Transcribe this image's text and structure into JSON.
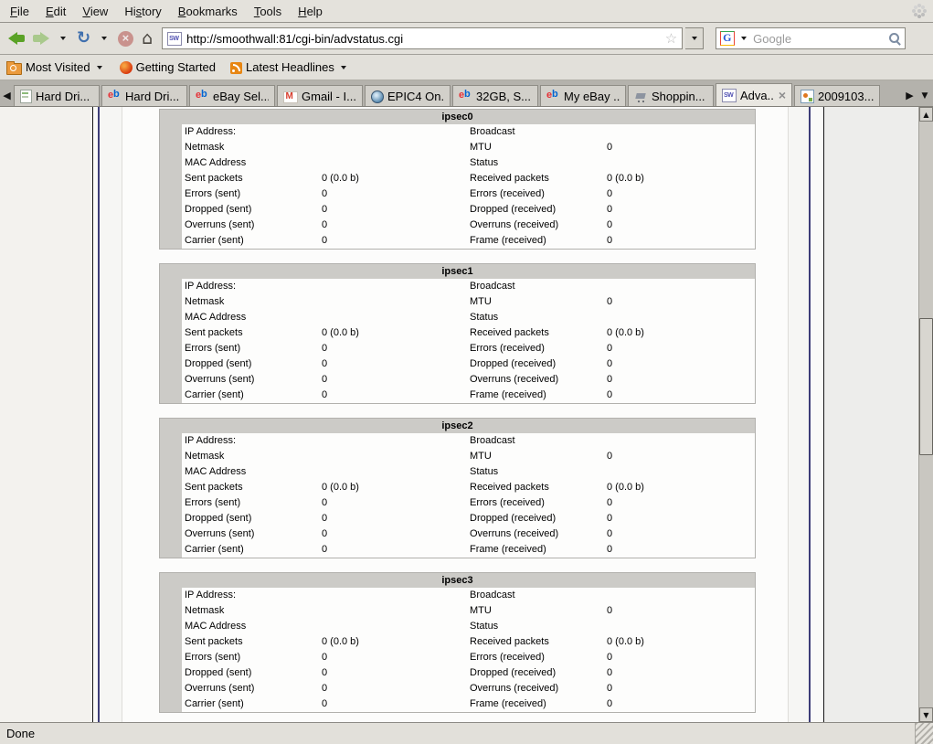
{
  "menubar": {
    "items": [
      {
        "label": "File",
        "accel_index": 0
      },
      {
        "label": "Edit",
        "accel_index": 0
      },
      {
        "label": "View",
        "accel_index": 0
      },
      {
        "label": "History",
        "accel_index": 2
      },
      {
        "label": "Bookmarks",
        "accel_index": 0
      },
      {
        "label": "Tools",
        "accel_index": 0
      },
      {
        "label": "Help",
        "accel_index": 0
      }
    ]
  },
  "navbar": {
    "url": "http://smoothwall:81/cgi-bin/advstatus.cgi",
    "search_placeholder": "Google",
    "icons": {
      "back": "green-left-arrow",
      "forward": "faded-right-arrow",
      "reload": "circular-arrows",
      "stop": "red-circle-x",
      "home": "house",
      "bookmark_star": "star-outline",
      "google_logo": "G",
      "search_magnifier": "magnifying-glass",
      "throbber": "dotted-spinner"
    }
  },
  "bookmarks_bar": {
    "items": [
      {
        "icon": "history-folder-icon",
        "label": "Most Visited",
        "dropdown": true
      },
      {
        "icon": "getting-started-icon",
        "label": "Getting Started",
        "dropdown": false
      },
      {
        "icon": "rss-icon",
        "label": "Latest Headlines",
        "dropdown": true
      }
    ]
  },
  "tabbar": {
    "tabs": [
      {
        "icon": "page-icon",
        "label": "Hard Dri...",
        "active": false,
        "close": false
      },
      {
        "icon": "ebay-icon",
        "label": "Hard Dri...",
        "active": false,
        "close": false
      },
      {
        "icon": "ebay-icon",
        "label": "eBay Sel...",
        "active": false,
        "close": false
      },
      {
        "icon": "gmail-icon",
        "label": "Gmail - I...",
        "active": false,
        "close": false
      },
      {
        "icon": "globe-icon",
        "label": "EPIC4 On...",
        "active": false,
        "close": false
      },
      {
        "icon": "ebay-icon",
        "label": "32GB, S...",
        "active": false,
        "close": false
      },
      {
        "icon": "ebay-icon",
        "label": "My eBay ...",
        "active": false,
        "close": false
      },
      {
        "icon": "cart-icon",
        "label": "Shoppin...",
        "active": false,
        "close": false
      },
      {
        "icon": "smoothwall-icon",
        "label": "Adva...",
        "active": true,
        "close": true
      },
      {
        "icon": "image-file-icon",
        "label": "2009103...",
        "active": false,
        "close": false
      }
    ]
  },
  "page": {
    "sections": [
      {
        "title": "ipsec0",
        "rows": [
          [
            "IP Address:",
            "",
            "Broadcast",
            ""
          ],
          [
            "Netmask",
            "",
            "MTU",
            "0"
          ],
          [
            "MAC Address",
            "",
            "Status",
            ""
          ],
          [
            "Sent packets",
            "0 (0.0 b)",
            "Received packets",
            "0 (0.0 b)"
          ],
          [
            "Errors (sent)",
            "0",
            "Errors (received)",
            "0"
          ],
          [
            "Dropped (sent)",
            "0",
            "Dropped (received)",
            "0"
          ],
          [
            "Overruns (sent)",
            "0",
            "Overruns (received)",
            "0"
          ],
          [
            "Carrier (sent)",
            "0",
            "Frame (received)",
            "0"
          ]
        ]
      },
      {
        "title": "ipsec1",
        "rows": [
          [
            "IP Address:",
            "",
            "Broadcast",
            ""
          ],
          [
            "Netmask",
            "",
            "MTU",
            "0"
          ],
          [
            "MAC Address",
            "",
            "Status",
            ""
          ],
          [
            "Sent packets",
            "0 (0.0 b)",
            "Received packets",
            "0 (0.0 b)"
          ],
          [
            "Errors (sent)",
            "0",
            "Errors (received)",
            "0"
          ],
          [
            "Dropped (sent)",
            "0",
            "Dropped (received)",
            "0"
          ],
          [
            "Overruns (sent)",
            "0",
            "Overruns (received)",
            "0"
          ],
          [
            "Carrier (sent)",
            "0",
            "Frame (received)",
            "0"
          ]
        ]
      },
      {
        "title": "ipsec2",
        "rows": [
          [
            "IP Address:",
            "",
            "Broadcast",
            ""
          ],
          [
            "Netmask",
            "",
            "MTU",
            "0"
          ],
          [
            "MAC Address",
            "",
            "Status",
            ""
          ],
          [
            "Sent packets",
            "0 (0.0 b)",
            "Received packets",
            "0 (0.0 b)"
          ],
          [
            "Errors (sent)",
            "0",
            "Errors (received)",
            "0"
          ],
          [
            "Dropped (sent)",
            "0",
            "Dropped (received)",
            "0"
          ],
          [
            "Overruns (sent)",
            "0",
            "Overruns (received)",
            "0"
          ],
          [
            "Carrier (sent)",
            "0",
            "Frame (received)",
            "0"
          ]
        ]
      },
      {
        "title": "ipsec3",
        "rows": [
          [
            "IP Address:",
            "",
            "Broadcast",
            ""
          ],
          [
            "Netmask",
            "",
            "MTU",
            "0"
          ],
          [
            "MAC Address",
            "",
            "Status",
            ""
          ],
          [
            "Sent packets",
            "0 (0.0 b)",
            "Received packets",
            "0 (0.0 b)"
          ],
          [
            "Errors (sent)",
            "0",
            "Errors (received)",
            "0"
          ],
          [
            "Dropped (sent)",
            "0",
            "Dropped (received)",
            "0"
          ],
          [
            "Overruns (sent)",
            "0",
            "Overruns (received)",
            "0"
          ],
          [
            "Carrier (sent)",
            "0",
            "Frame (received)",
            "0"
          ]
        ]
      }
    ]
  },
  "statusbar": {
    "text": "Done"
  }
}
